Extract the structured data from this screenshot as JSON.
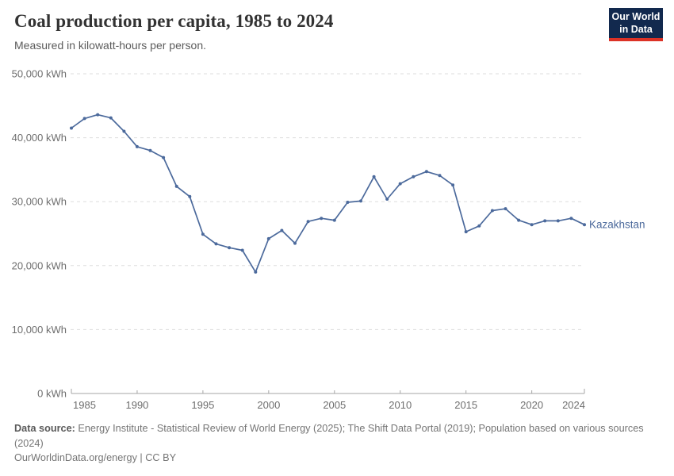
{
  "header": {
    "title": "Coal production per capita, 1985 to 2024",
    "subtitle": "Measured in kilowatt-hours per person.",
    "logo": {
      "line1": "Our World",
      "line2": "in Data"
    }
  },
  "chart_data": {
    "type": "line",
    "title": "Coal production per capita, 1985 to 2024",
    "ylabel": "",
    "xlabel": "",
    "unit": "kWh",
    "entity_label": "Kazakhstan",
    "x": [
      1985,
      1986,
      1987,
      1988,
      1989,
      1990,
      1991,
      1992,
      1993,
      1994,
      1995,
      1996,
      1997,
      1998,
      1999,
      2000,
      2001,
      2002,
      2003,
      2004,
      2005,
      2006,
      2007,
      2008,
      2009,
      2010,
      2011,
      2012,
      2013,
      2014,
      2015,
      2016,
      2017,
      2018,
      2019,
      2020,
      2021,
      2022,
      2023,
      2024
    ],
    "series": [
      {
        "name": "Kazakhstan",
        "values": [
          41500,
          43000,
          43600,
          43100,
          41000,
          38600,
          38000,
          36900,
          32400,
          30800,
          24900,
          23400,
          22800,
          22400,
          19000,
          24200,
          25500,
          23500,
          26900,
          27400,
          27100,
          29900,
          30100,
          33900,
          30400,
          32800,
          33900,
          34700,
          34100,
          32600,
          25300,
          26200,
          28600,
          28900,
          27100,
          26400,
          27000,
          27000,
          27400,
          26400
        ]
      }
    ],
    "x_ticks": [
      1985,
      1990,
      1995,
      2000,
      2005,
      2010,
      2015,
      2020,
      2024
    ],
    "y_ticks": [
      0,
      10000,
      20000,
      30000,
      40000,
      50000
    ],
    "y_tick_suffix": " kWh",
    "xlim": [
      1985,
      2024
    ],
    "ylim": [
      0,
      50000
    ],
    "grid": "horizontal-dashed",
    "legend_position": "end-of-line-label"
  },
  "colors": {
    "line": "#4C6A9C",
    "entity_label": "#4C6A9C",
    "grid": "#dedede",
    "axis": "#a5a5a5",
    "tick_text": "#6e6e6e"
  },
  "footer": {
    "source_label": "Data source:",
    "source_text": " Energy Institute - Statistical Review of World Energy (2025); The Shift Data Portal (2019); Population based on various sources (2024)",
    "license_line": "OurWorldinData.org/energy | CC BY"
  }
}
